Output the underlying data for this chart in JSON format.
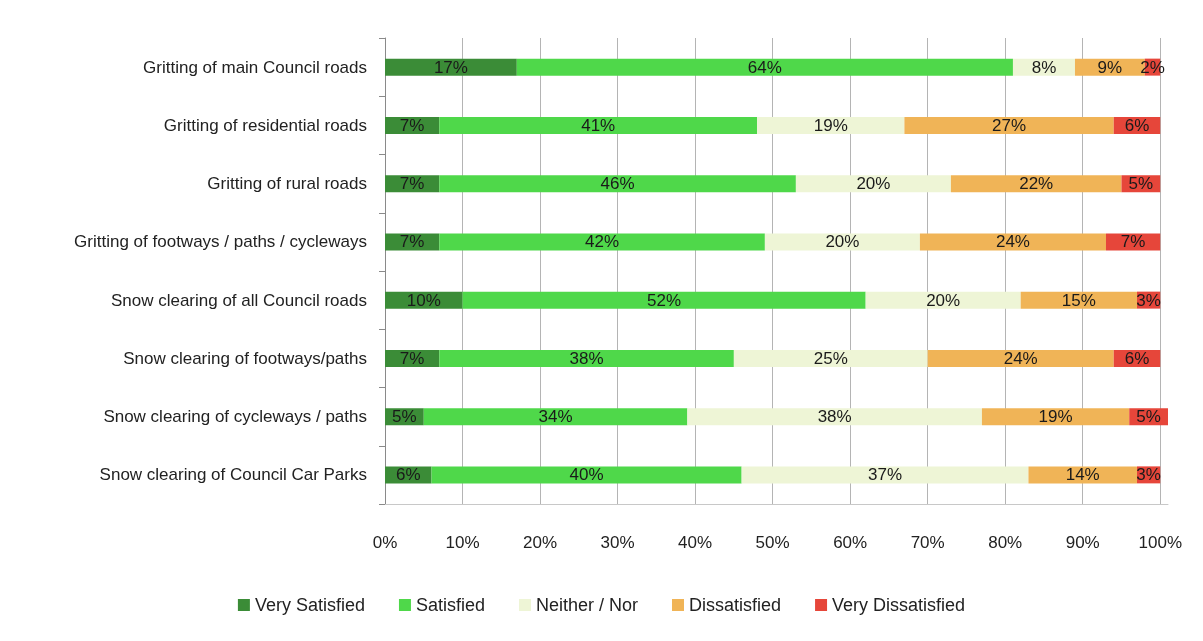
{
  "chart_data": {
    "type": "bar",
    "orientation": "horizontal",
    "stacked": true,
    "categories": [
      "Gritting of main Council roads",
      "Gritting of residential roads",
      "Gritting of rural roads",
      "Gritting of footways / paths / cycleways",
      "Snow clearing of all Council roads",
      "Snow clearing of footways/paths",
      "Snow clearing of cycleways / paths",
      "Snow clearing of Council Car Parks"
    ],
    "series": [
      {
        "name": "Very Satisfied",
        "color": "#3b8c37",
        "values": [
          17,
          7,
          7,
          7,
          10,
          7,
          5,
          6
        ],
        "value_labels": [
          "17%",
          "7%",
          "7%",
          "7%",
          "10%",
          "7%",
          "5%",
          "6%"
        ]
      },
      {
        "name": "Satisfied",
        "color": "#4fd84a",
        "values": [
          64,
          41,
          46,
          42,
          52,
          38,
          34,
          40
        ],
        "value_labels": [
          "64%",
          "41%",
          "46%",
          "42%",
          "52%",
          "38%",
          "34%",
          "40%"
        ]
      },
      {
        "name": "Neither / Nor",
        "color": "#eef5d6",
        "values": [
          8,
          19,
          20,
          20,
          20,
          25,
          38,
          37
        ],
        "value_labels": [
          "8%",
          "19%",
          "20%",
          "20%",
          "20%",
          "25%",
          "38%",
          "37%"
        ]
      },
      {
        "name": "Dissatisfied",
        "color": "#f0b457",
        "values": [
          9,
          27,
          22,
          24,
          15,
          24,
          19,
          14
        ],
        "value_labels": [
          "9%",
          "27%",
          "22%",
          "24%",
          "15%",
          "24%",
          "19%",
          "14%"
        ]
      },
      {
        "name": "Very Dissatisfied",
        "color": "#e6463a",
        "values": [
          2,
          6,
          5,
          7,
          3,
          6,
          5,
          3
        ],
        "value_labels": [
          "2%",
          "6%",
          "5%",
          "7%",
          "3%",
          "6%",
          "5%",
          "3%"
        ]
      }
    ],
    "xlim": [
      0,
      101
    ],
    "xticks": [
      {
        "value": 0,
        "label": "0%"
      },
      {
        "value": 10,
        "label": "10%"
      },
      {
        "value": 20,
        "label": "20%"
      },
      {
        "value": 30,
        "label": "30%"
      },
      {
        "value": 40,
        "label": "40%"
      },
      {
        "value": 50,
        "label": "50%"
      },
      {
        "value": 60,
        "label": "60%"
      },
      {
        "value": 70,
        "label": "70%"
      },
      {
        "value": 80,
        "label": "80%"
      },
      {
        "value": 90,
        "label": "90%"
      },
      {
        "value": 100,
        "label": "100%"
      }
    ],
    "grid": "x",
    "legend": "bottom"
  }
}
